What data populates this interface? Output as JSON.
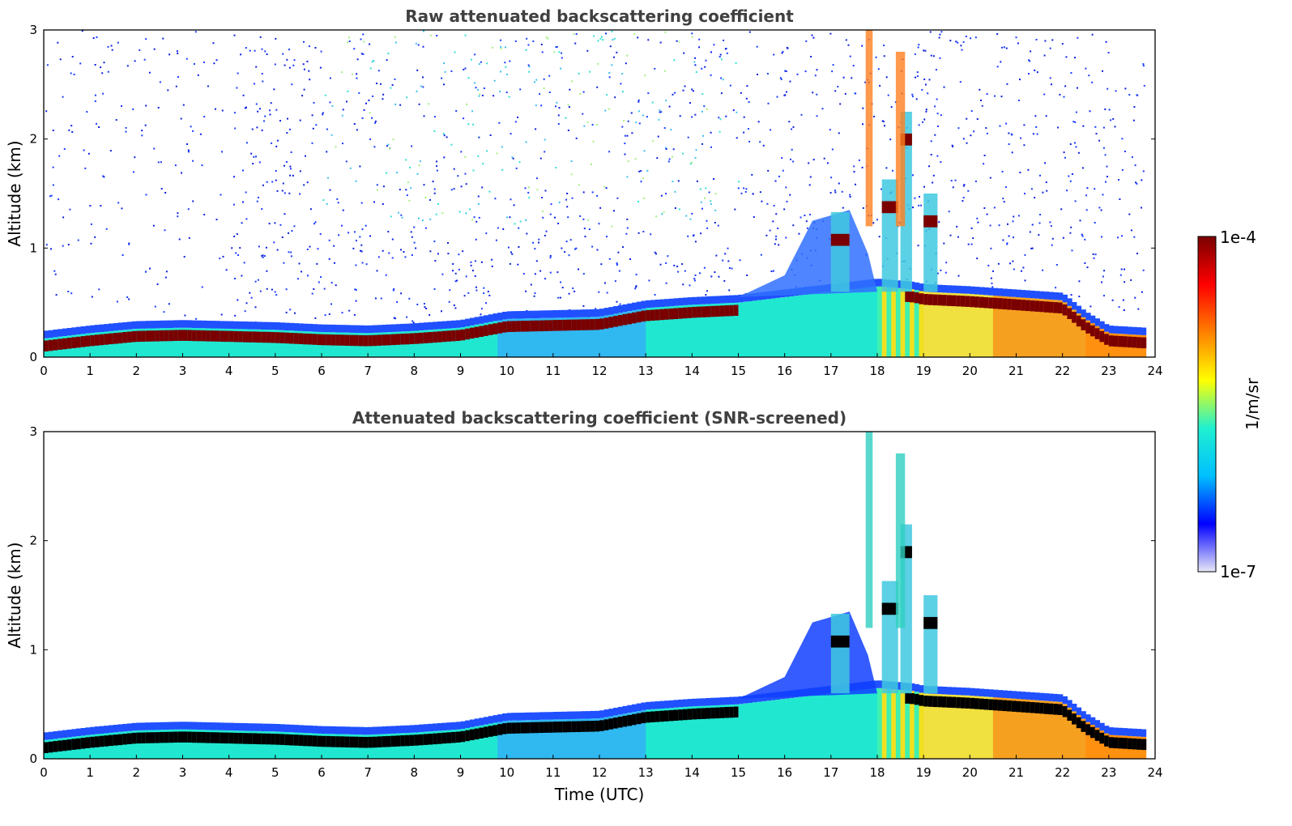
{
  "chart_data": [
    {
      "type": "heatmap",
      "title": "Raw attenuated backscattering coefficient",
      "xlabel": "",
      "ylabel": "Altitude (km)",
      "xlim": [
        0,
        24
      ],
      "ylim": [
        0,
        3
      ],
      "xticks": [
        "0",
        "1",
        "2",
        "3",
        "4",
        "5",
        "6",
        "7",
        "8",
        "9",
        "10",
        "11",
        "12",
        "13",
        "14",
        "15",
        "16",
        "17",
        "18",
        "19",
        "20",
        "21",
        "22",
        "23",
        "24"
      ],
      "yticks": [
        "0",
        "1",
        "2",
        "3"
      ],
      "noise": "high",
      "layer_color": "#7a0000",
      "top_layer": {
        "times": [
          0,
          1,
          2,
          3,
          4,
          5,
          6,
          7,
          8,
          9,
          10,
          11,
          12,
          13,
          14,
          15,
          16,
          17,
          18,
          18.8,
          19,
          20,
          21,
          22,
          22.5,
          23,
          23.8
        ],
        "altitudes_km": [
          0.17,
          0.22,
          0.26,
          0.27,
          0.26,
          0.25,
          0.23,
          0.22,
          0.24,
          0.27,
          0.35,
          0.36,
          0.37,
          0.45,
          0.48,
          0.5,
          0.55,
          0.6,
          0.65,
          0.62,
          0.6,
          0.58,
          0.55,
          0.52,
          0.35,
          0.22,
          0.2
        ]
      },
      "clouds": [
        {
          "t": 17.0,
          "alt_km": 1.08,
          "width_h": 0.4
        },
        {
          "t": 18.1,
          "alt_km": 1.38,
          "width_h": 0.35
        },
        {
          "t": 18.5,
          "alt_km": 2.0,
          "width_h": 0.25
        },
        {
          "t": 19.0,
          "alt_km": 1.25,
          "width_h": 0.3
        }
      ]
    },
    {
      "type": "heatmap",
      "title": "Attenuated backscattering coefficient (SNR-screened)",
      "xlabel": "Time (UTC)",
      "ylabel": "Altitude (km)",
      "xlim": [
        0,
        24
      ],
      "ylim": [
        0,
        3
      ],
      "xticks": [
        "0",
        "1",
        "2",
        "3",
        "4",
        "5",
        "6",
        "7",
        "8",
        "9",
        "10",
        "11",
        "12",
        "13",
        "14",
        "15",
        "16",
        "17",
        "18",
        "19",
        "20",
        "21",
        "22",
        "23",
        "24"
      ],
      "yticks": [
        "0",
        "1",
        "2",
        "3"
      ],
      "noise": "none",
      "layer_color": "#000000",
      "top_layer": {
        "times": [
          0,
          1,
          2,
          3,
          4,
          5,
          6,
          7,
          8,
          9,
          10,
          11,
          12,
          13,
          14,
          15,
          16,
          17,
          18,
          18.8,
          19,
          20,
          21,
          22,
          22.5,
          23,
          23.8
        ],
        "altitudes_km": [
          0.17,
          0.22,
          0.26,
          0.27,
          0.26,
          0.25,
          0.23,
          0.22,
          0.24,
          0.27,
          0.35,
          0.36,
          0.37,
          0.45,
          0.48,
          0.5,
          0.55,
          0.6,
          0.65,
          0.62,
          0.6,
          0.58,
          0.55,
          0.52,
          0.35,
          0.22,
          0.2
        ]
      },
      "clouds": [
        {
          "t": 17.0,
          "alt_km": 1.08,
          "width_h": 0.4
        },
        {
          "t": 18.1,
          "alt_km": 1.38,
          "width_h": 0.35
        },
        {
          "t": 18.5,
          "alt_km": 1.9,
          "width_h": 0.25
        },
        {
          "t": 19.0,
          "alt_km": 1.25,
          "width_h": 0.3
        }
      ]
    }
  ],
  "colorbar": {
    "label": "1/m/sr",
    "max_label": "1e-4",
    "min_label": "1e-7",
    "scale": "log",
    "range": [
      1e-07,
      0.0001
    ],
    "colors": [
      "#e8e8f8",
      "#0000ff",
      "#00c0ff",
      "#20f0d0",
      "#ffff00",
      "#ff8000",
      "#ff0000",
      "#7a0000"
    ]
  }
}
